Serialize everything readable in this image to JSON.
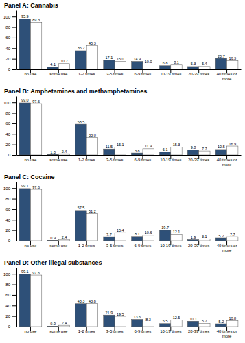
{
  "chart_data": [
    {
      "type": "bar",
      "title": "Panel A: Cannabis",
      "categories": [
        "no use",
        "some use",
        "1-2 times",
        "3-5 times",
        "6-9 times",
        "10-19 times",
        "20-39 times",
        "40 times or\nmore"
      ],
      "series": [
        {
          "color": "#2E5078",
          "values": [
            95.9,
            4.1,
            35.2,
            17.1,
            14.9,
            6.8,
            5.3,
            20.7
          ],
          "value_labels": [
            "95.9",
            "4.1",
            "35.2",
            "17.1",
            "14.9",
            "6.8",
            "5.3",
            "20.7"
          ]
        },
        {
          "color": "#FFFFFF",
          "values": [
            89.3,
            10.7,
            45.3,
            15.0,
            10.0,
            8.1,
            5.4,
            16.3
          ],
          "value_labels": [
            "89.3",
            "10.7",
            "45.3",
            "15.0",
            "10.0",
            "8.1",
            "5.4",
            "16.3"
          ]
        }
      ],
      "ylim": [
        0,
        112
      ],
      "yticks": [
        0,
        20,
        40,
        60,
        80,
        100
      ],
      "data_labels": true,
      "grid": false
    },
    {
      "type": "bar",
      "title": "Panel B: Amphetamines and methamphetamines",
      "categories": [
        "no use",
        "some use",
        "1-2 times",
        "3-5 times",
        "6-9 times",
        "10-19 times",
        "20-39 times",
        "40 times or\nmore"
      ],
      "series": [
        {
          "color": "#2E5078",
          "values": [
            99.0,
            1.0,
            58.5,
            11.5,
            3.8,
            6.1,
            9.8,
            10.5
          ],
          "value_labels": [
            "99.0",
            "1.0",
            "58.5",
            "11.5",
            "3.8",
            "6.1",
            "9.8",
            "10.5"
          ]
        },
        {
          "color": "#FFFFFF",
          "values": [
            97.6,
            2.4,
            33.0,
            15.1,
            11.9,
            15.3,
            7.7,
            16.9
          ],
          "value_labels": [
            "97.6",
            "2.4",
            "33.0",
            "15.1",
            "11.9",
            "15.3",
            "7.7",
            "16.9"
          ]
        }
      ],
      "ylim": [
        0,
        112
      ],
      "yticks": [
        0,
        20,
        40,
        60,
        80,
        100
      ],
      "data_labels": true,
      "grid": false
    },
    {
      "type": "bar",
      "title": "Panel C: Cocaine",
      "categories": [
        "no use",
        "some use",
        "1-2 times",
        "3-5 times",
        "6-9 times",
        "10-19 times",
        "20-39 times",
        "40 times or\nmore"
      ],
      "series": [
        {
          "color": "#2E5078",
          "values": [
            99.1,
            0.9,
            57.5,
            7.7,
            8.1,
            19.7,
            1.9,
            5.2
          ],
          "value_labels": [
            "99.1",
            "0.9",
            "57.5",
            "7.7",
            "8.1",
            "19.7",
            "1.9",
            "5.2"
          ]
        },
        {
          "color": "#FFFFFF",
          "values": [
            97.6,
            2.4,
            51.2,
            15.4,
            10.6,
            12.1,
            3.1,
            7.7
          ],
          "value_labels": [
            "97.6",
            "2.4",
            "51.2",
            "15.4",
            "10.6",
            "12.1",
            "3.1",
            "7.7"
          ]
        }
      ],
      "ylim": [
        0,
        112
      ],
      "yticks": [
        0,
        20,
        40,
        60,
        80,
        100
      ],
      "data_labels": true,
      "grid": false
    },
    {
      "type": "bar",
      "title": "Panel D: Other illegal substances",
      "categories": [
        "no use",
        "some use",
        "1-2 times",
        "3-5 times",
        "6-9 times",
        "10-19 times",
        "20-39 times",
        "40 times or\nmore"
      ],
      "series": [
        {
          "color": "#2E5078",
          "values": [
            99.1,
            0.9,
            43.3,
            21.9,
            13.6,
            5.5,
            10.1,
            5.2
          ],
          "value_labels": [
            "99.1",
            "0.9",
            "43.3",
            "21.9",
            "13.6",
            "5.5",
            "10.1",
            "5.2"
          ]
        },
        {
          "color": "#FFFFFF",
          "values": [
            97.6,
            2.4,
            43.8,
            19.5,
            8.3,
            12.5,
            5.7,
            10.8
          ],
          "value_labels": [
            "97.6",
            "2.4",
            "43.8",
            "19.5",
            "8.3",
            "12.5",
            "5.7",
            "10.8"
          ]
        }
      ],
      "ylim": [
        0,
        112
      ],
      "yticks": [
        0,
        20,
        40,
        60,
        80,
        100
      ],
      "data_labels": true,
      "grid": false
    }
  ]
}
